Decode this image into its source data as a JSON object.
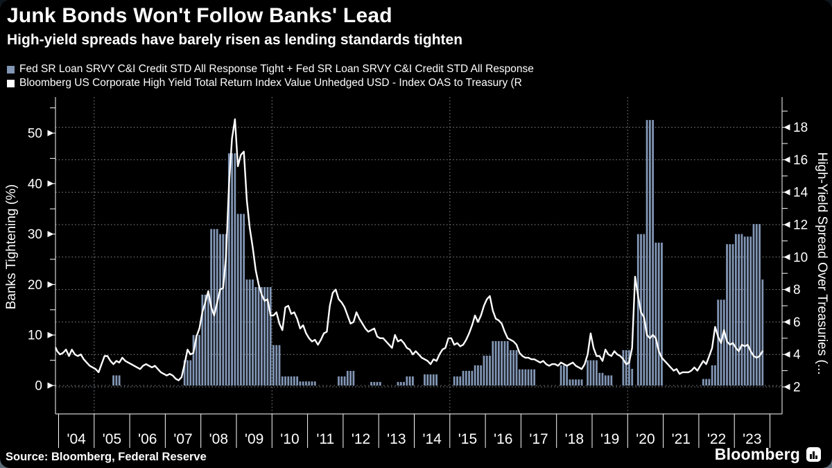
{
  "header": {
    "title": "Junk Bonds Won't Follow Banks' Lead",
    "subtitle": "High-yield spreads have barely risen as lending standards tighten"
  },
  "legend": [
    {
      "label": "Fed SR Loan SRVY C&I Credit STD All Response Tight + Fed SR Loan SRVY C&I Credit STD All Response",
      "color": "#8296b5"
    },
    {
      "label": "Bloomberg US Corporate High Yield Total Return Index Value Unhedged USD - Index OAS to Treasury (R",
      "color": "#ffffff"
    }
  ],
  "footer": {
    "source": "Source: Bloomberg, Federal Reserve",
    "brand": "Bloomberg"
  },
  "chart_data": {
    "type": "combo",
    "x": {
      "start": "2003-11",
      "frequency": "monthly",
      "year_tick_labels": [
        "'04",
        "'05",
        "'06",
        "'07",
        "'08",
        "'09",
        "'10",
        "'11",
        "'12",
        "'13",
        "'14",
        "'15",
        "'16",
        "'17",
        "'18",
        "'19",
        "'20",
        "'21",
        "'22",
        "'23"
      ]
    },
    "left_axis": {
      "title": "Banks Tightening (%)",
      "ticks": [
        0,
        10,
        20,
        30,
        40,
        50
      ],
      "minor_step": 5,
      "range": [
        0,
        57
      ]
    },
    "right_axis": {
      "title": "High-Yield Spread Over Treasuries (...",
      "ticks": [
        2,
        4,
        6,
        8,
        10,
        12,
        14,
        16,
        18
      ],
      "minor_step": 1,
      "range": [
        2,
        19.8
      ]
    },
    "gridlines": {
      "horizontal_right_values": [
        2,
        4,
        6,
        8,
        10,
        12,
        14,
        16,
        18
      ],
      "zero_line_left": true,
      "vertical_years": [
        2005,
        2010,
        2015,
        2020
      ]
    },
    "series": [
      {
        "name": "Fed SR Loan SRVY C&I Credit STD All Response Tight + Fed SR Loan SRVY C&I Credit STD All Response",
        "type": "bar",
        "axis": "left",
        "color": "#8296b5",
        "values": [
          0,
          0,
          0,
          0,
          0,
          0,
          0,
          0,
          0,
          0,
          0,
          0,
          0,
          0,
          0,
          0,
          0,
          0,
          0,
          0,
          2,
          2,
          2,
          0,
          0,
          0,
          0,
          0,
          0,
          0,
          0,
          0,
          0,
          0,
          0,
          0,
          0,
          0,
          0,
          0,
          0,
          0,
          0,
          0,
          5,
          5,
          5,
          10,
          10,
          10,
          18,
          18,
          18,
          31,
          31,
          31,
          30,
          30,
          30,
          46,
          46,
          46,
          34,
          34,
          34,
          21,
          21,
          21,
          19.5,
          19.5,
          19.5,
          19.5,
          19.5,
          19.5,
          8,
          8,
          8,
          1.8,
          1.8,
          1.8,
          1.8,
          1.8,
          1.8,
          0.8,
          0.8,
          0.8,
          0.8,
          0.8,
          0.8,
          0,
          0,
          0,
          0,
          0,
          0,
          0,
          1.8,
          1.8,
          1.8,
          2.9,
          2.9,
          2.9,
          0,
          0,
          0,
          0,
          0,
          0.7,
          0.7,
          0.7,
          0.7,
          0,
          0,
          0,
          0,
          0,
          0.7,
          0.7,
          0.7,
          1.8,
          1.8,
          1.8,
          0,
          0,
          0,
          2.2,
          2.2,
          2.2,
          2.2,
          2.2,
          0,
          0,
          0,
          0,
          0,
          1.8,
          1.8,
          1.8,
          2.9,
          2.9,
          2.9,
          2.9,
          4,
          4,
          4,
          5.9,
          5.9,
          5.9,
          8.8,
          8.8,
          8.8,
          8.8,
          8.8,
          8.8,
          7,
          7,
          7,
          3.2,
          3.2,
          3.2,
          3.2,
          3.2,
          3.2,
          0,
          0,
          0,
          0,
          0,
          0,
          0,
          0,
          4,
          4,
          4,
          1.2,
          1.2,
          1.2,
          1.2,
          1.2,
          0,
          5,
          5,
          5,
          5,
          2.5,
          2.5,
          2,
          2,
          2,
          0,
          0,
          0,
          7,
          7,
          7,
          3.3,
          0,
          30,
          30,
          30,
          52.6,
          52.6,
          52.6,
          28.3,
          28.3,
          28.3,
          0,
          0,
          0,
          0,
          0,
          0,
          0,
          0,
          0,
          0,
          0,
          0,
          0,
          1.3,
          1.3,
          1.3,
          4,
          4,
          17,
          17,
          17,
          28,
          28,
          28,
          30,
          30,
          30,
          29.5,
          29.5,
          29.5,
          32,
          32,
          32,
          21
        ]
      },
      {
        "name": "Bloomberg US Corporate High Yield Total Return Index Value Unhedged USD - Index OAS to Treasury (R",
        "type": "line",
        "axis": "right",
        "color": "#ffffff",
        "values": [
          4.4,
          4.2,
          4.0,
          4.1,
          4.3,
          3.9,
          4.3,
          4.0,
          3.9,
          4.0,
          3.7,
          3.5,
          3.3,
          3.2,
          3.1,
          2.9,
          3.4,
          3.9,
          3.9,
          3.6,
          3.4,
          3.6,
          3.5,
          3.8,
          3.6,
          3.5,
          3.4,
          3.3,
          3.2,
          3.1,
          3.3,
          3.4,
          3.3,
          3.2,
          3.3,
          3.1,
          2.9,
          2.8,
          2.7,
          2.8,
          2.7,
          2.5,
          2.4,
          2.6,
          3.4,
          4.3,
          4.0,
          4.1,
          5.1,
          5.6,
          6.6,
          7.2,
          7.9,
          6.9,
          6.4,
          7.2,
          8.0,
          8.1,
          10.0,
          14.5,
          17.3,
          18.5,
          15.6,
          16.3,
          16.5,
          13.5,
          11.8,
          10.6,
          9.2,
          8.3,
          7.7,
          7.3,
          7.4,
          6.4,
          6.4,
          6.6,
          5.9,
          5.5,
          6.9,
          7.0,
          6.5,
          6.6,
          6.2,
          5.6,
          5.8,
          5.3,
          5.0,
          4.8,
          4.9,
          4.6,
          4.9,
          5.3,
          5.4,
          7.0,
          7.8,
          8.0,
          7.4,
          7.2,
          6.9,
          6.4,
          5.9,
          6.0,
          6.6,
          6.2,
          5.9,
          5.6,
          5.4,
          5.5,
          5.6,
          5.1,
          5.0,
          5.0,
          4.8,
          4.6,
          4.4,
          5.2,
          4.8,
          4.9,
          4.7,
          4.4,
          4.3,
          4.0,
          4.2,
          4.0,
          3.8,
          3.7,
          3.6,
          3.4,
          3.7,
          3.6,
          4.0,
          4.3,
          4.4,
          5.0,
          5.0,
          4.6,
          4.7,
          4.5,
          4.6,
          4.9,
          5.3,
          5.8,
          6.4,
          6.0,
          6.4,
          7.0,
          7.4,
          7.6,
          6.7,
          6.2,
          6.1,
          5.9,
          5.4,
          5.0,
          4.9,
          4.8,
          4.6,
          4.1,
          3.9,
          3.8,
          3.8,
          3.7,
          3.7,
          3.6,
          3.5,
          3.6,
          3.4,
          3.3,
          3.4,
          3.4,
          3.3,
          3.5,
          3.4,
          3.3,
          3.4,
          3.5,
          3.3,
          3.2,
          3.1,
          3.4,
          4.0,
          5.3,
          4.4,
          3.9,
          3.9,
          3.6,
          4.3,
          4.0,
          3.9,
          4.2,
          4.0,
          3.9,
          3.7,
          3.4,
          3.5,
          4.4,
          8.8,
          7.6,
          6.6,
          6.3,
          5.2,
          5.0,
          5.2,
          5.0,
          4.2,
          3.8,
          3.6,
          3.4,
          3.2,
          3.0,
          3.1,
          2.8,
          2.9,
          2.9,
          2.9,
          3.0,
          3.2,
          3.0,
          3.3,
          3.6,
          3.4,
          3.9,
          4.4,
          5.7,
          5.1,
          4.7,
          5.5,
          4.8,
          4.6,
          4.7,
          4.4,
          4.2,
          4.6,
          4.5,
          4.6,
          4.2,
          3.9,
          3.8,
          3.9,
          4.2
        ]
      }
    ]
  }
}
